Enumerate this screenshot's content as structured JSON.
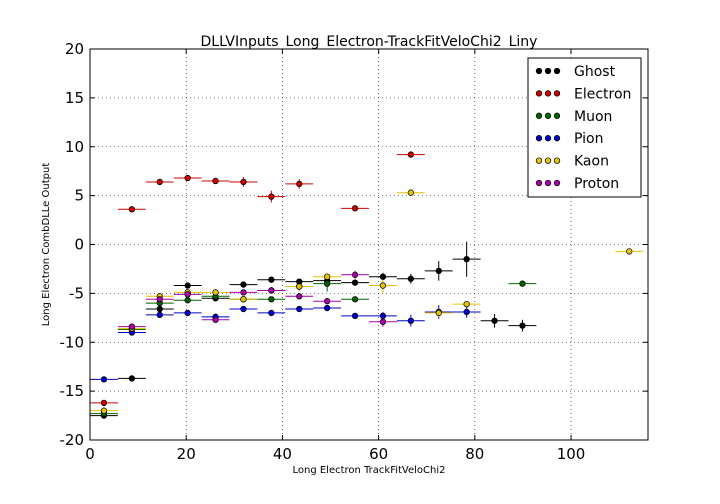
{
  "chart_data": {
    "type": "scatter",
    "title": "DLLVInputs_Long_Electron-TrackFitVeloChi2_Liny",
    "xlabel": "Long Electron TrackFitVeloChi2",
    "ylabel": "Long Electron CombDLLe Output",
    "xlim": [
      0,
      116
    ],
    "ylim": [
      -20,
      20
    ],
    "xticks": [
      0,
      20,
      40,
      60,
      80,
      100
    ],
    "yticks": [
      -20,
      -15,
      -10,
      -5,
      0,
      5,
      10,
      15,
      20
    ],
    "grid": true,
    "legend_position": "top-right",
    "x_bin_half_width": 2.9,
    "series": [
      {
        "name": "Ghost",
        "color": "#000000",
        "points": [
          [
            2.9,
            -17.5,
            0.2
          ],
          [
            8.7,
            -13.7,
            0.2
          ],
          [
            14.5,
            -6.6,
            0.3
          ],
          [
            20.3,
            -4.2,
            0.3
          ],
          [
            26.1,
            -5.5,
            0.3
          ],
          [
            31.9,
            -4.1,
            0.3
          ],
          [
            37.7,
            -3.6,
            0.3
          ],
          [
            43.5,
            -3.8,
            0.3
          ],
          [
            49.3,
            -3.7,
            0.3
          ],
          [
            55.1,
            -3.9,
            0.3
          ],
          [
            60.9,
            -3.3,
            0.4
          ],
          [
            66.7,
            -3.5,
            0.5
          ],
          [
            72.5,
            -2.7,
            1.0
          ],
          [
            78.3,
            -1.5,
            1.8
          ],
          [
            84.1,
            -7.8,
            0.7
          ],
          [
            89.9,
            -8.3,
            0.6
          ]
        ]
      },
      {
        "name": "Electron",
        "color": "#cc0000",
        "points": [
          [
            2.9,
            -16.2,
            0.2
          ],
          [
            8.7,
            3.6,
            0.2
          ],
          [
            14.5,
            6.4,
            0.2
          ],
          [
            20.3,
            6.8,
            0.2
          ],
          [
            26.1,
            6.5,
            0.2
          ],
          [
            31.9,
            6.4,
            0.5
          ],
          [
            37.7,
            4.9,
            0.6
          ],
          [
            43.5,
            6.2,
            0.5
          ],
          [
            55.1,
            3.7,
            0.2
          ],
          [
            66.7,
            9.2,
            0.2
          ]
        ]
      },
      {
        "name": "Muon",
        "color": "#006400",
        "points": [
          [
            2.9,
            -17.3,
            0.2
          ],
          [
            8.7,
            -8.7,
            0.2
          ],
          [
            14.5,
            -6.0,
            0.3
          ],
          [
            20.3,
            -5.7,
            0.2
          ],
          [
            26.1,
            -5.3,
            0.2
          ],
          [
            31.9,
            -5.6,
            0.2
          ],
          [
            37.7,
            -5.6,
            0.2
          ],
          [
            43.5,
            -4.3,
            0.4
          ],
          [
            49.3,
            -4.0,
            0.8
          ],
          [
            55.1,
            -5.6,
            0.2
          ],
          [
            89.9,
            -4.0,
            0.2
          ]
        ]
      },
      {
        "name": "Pion",
        "color": "#0000cc",
        "points": [
          [
            2.9,
            -13.8,
            0.2
          ],
          [
            8.7,
            -9.0,
            0.2
          ],
          [
            14.5,
            -7.2,
            0.2
          ],
          [
            20.3,
            -7.0,
            0.2
          ],
          [
            26.1,
            -7.4,
            0.2
          ],
          [
            31.9,
            -6.6,
            0.2
          ],
          [
            37.7,
            -7.0,
            0.2
          ],
          [
            43.5,
            -6.6,
            0.2
          ],
          [
            49.3,
            -6.5,
            0.3
          ],
          [
            55.1,
            -7.3,
            0.2
          ],
          [
            60.9,
            -7.3,
            0.4
          ],
          [
            66.7,
            -7.8,
            0.6
          ],
          [
            72.5,
            -6.9,
            0.7
          ],
          [
            78.3,
            -6.9,
            0.6
          ]
        ]
      },
      {
        "name": "Kaon",
        "color": "#e6c300",
        "points": [
          [
            2.9,
            -17.0,
            0.2
          ],
          [
            8.7,
            -8.6,
            0.2
          ],
          [
            14.5,
            -5.3,
            0.2
          ],
          [
            20.3,
            -4.9,
            0.2
          ],
          [
            26.1,
            -4.9,
            0.2
          ],
          [
            31.9,
            -5.6,
            0.2
          ],
          [
            37.7,
            -4.7,
            0.2
          ],
          [
            43.5,
            -4.3,
            0.3
          ],
          [
            49.3,
            -3.3,
            0.4
          ],
          [
            60.9,
            -4.2,
            0.8
          ],
          [
            66.7,
            5.3,
            0.2
          ],
          [
            72.5,
            -7.0,
            0.4
          ],
          [
            78.3,
            -6.1,
            0.2
          ],
          [
            112.1,
            -0.7,
            0.2
          ]
        ]
      },
      {
        "name": "Proton",
        "color": "#aa00aa",
        "points": [
          [
            8.7,
            -8.4,
            0.2
          ],
          [
            14.5,
            -5.6,
            0.2
          ],
          [
            20.3,
            -5.1,
            0.2
          ],
          [
            26.1,
            -7.7,
            0.2
          ],
          [
            31.9,
            -4.9,
            0.2
          ],
          [
            37.7,
            -4.7,
            0.2
          ],
          [
            43.5,
            -5.3,
            0.2
          ],
          [
            49.3,
            -5.8,
            0.2
          ],
          [
            55.1,
            -3.1,
            0.4
          ],
          [
            60.9,
            -7.9,
            0.5
          ]
        ]
      }
    ]
  }
}
